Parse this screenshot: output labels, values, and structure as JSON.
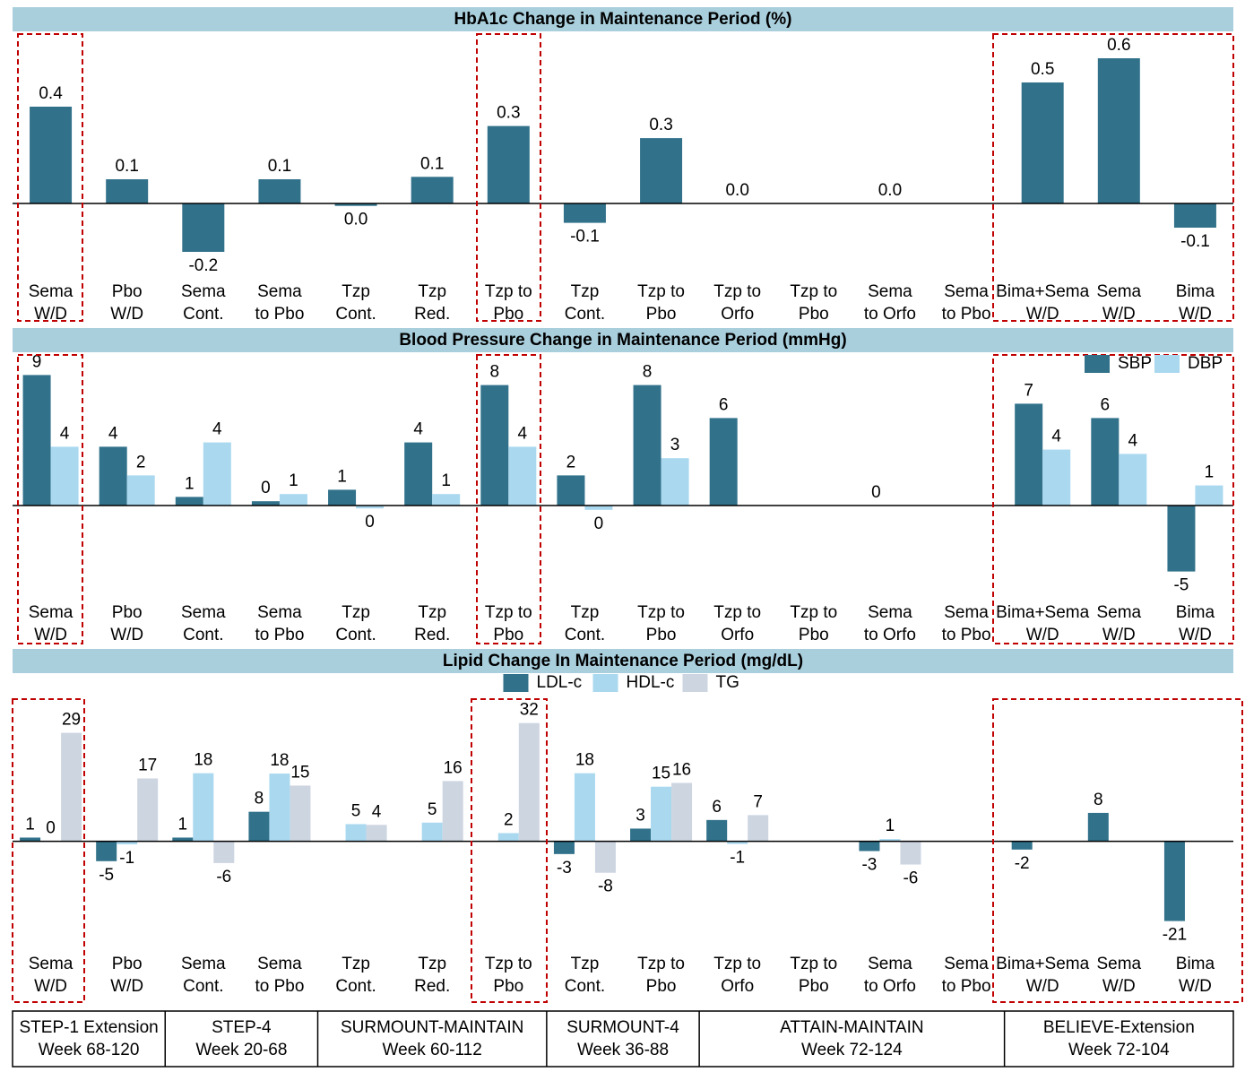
{
  "chart_data": [
    {
      "type": "bar",
      "title": "HbA1c Change in Maintenance Period (%)",
      "categories": [
        [
          "Sema",
          "W/D"
        ],
        [
          "Pbo",
          "W/D"
        ],
        [
          "Sema",
          "Cont."
        ],
        [
          "Sema",
          "to Pbo"
        ],
        [
          "Tzp",
          "Cont."
        ],
        [
          "Tzp",
          "Red."
        ],
        [
          "Tzp to",
          "Pbo"
        ],
        [
          "Tzp",
          "Cont."
        ],
        [
          "Tzp to",
          "Pbo"
        ],
        [
          "Tzp to",
          "Orfo"
        ],
        [
          "Tzp to",
          "Pbo"
        ],
        [
          "Sema",
          "to Orfo"
        ],
        [
          "Sema",
          "to Pbo"
        ],
        [
          "Bima+Sema",
          "W/D"
        ],
        [
          "Sema",
          "W/D"
        ],
        [
          "Bima",
          "W/D"
        ]
      ],
      "values": [
        0.4,
        0.1,
        -0.2,
        0.1,
        -0.01,
        0.11,
        0.32,
        -0.08,
        0.27,
        0,
        null,
        0,
        null,
        0.5,
        0.6,
        -0.1
      ],
      "value_labels": [
        "0.4",
        "0.1",
        "-0.2",
        "0.1",
        "0.0",
        "0.1",
        "0.3",
        "-0.1",
        "0.3",
        "0.0",
        null,
        "0.0",
        null,
        "0.5",
        "0.6",
        "-0.1"
      ],
      "color": "#31718a",
      "ylim": [
        -0.5,
        0.7
      ]
    },
    {
      "type": "bar",
      "title": "Blood Pressure Change in Maintenance Period (mmHg)",
      "categories": [
        [
          "Sema",
          "W/D"
        ],
        [
          "Pbo",
          "W/D"
        ],
        [
          "Sema",
          "Cont."
        ],
        [
          "Sema",
          "to Pbo"
        ],
        [
          "Tzp",
          "Cont."
        ],
        [
          "Tzp",
          "Red."
        ],
        [
          "Tzp to",
          "Pbo"
        ],
        [
          "Tzp",
          "Cont."
        ],
        [
          "Tzp to",
          "Pbo"
        ],
        [
          "Tzp to",
          "Orfo"
        ],
        [
          "Tzp to",
          "Pbo"
        ],
        [
          "Sema",
          "to Orfo"
        ],
        [
          "Sema",
          "to Pbo"
        ],
        [
          "Bima+Sema",
          "W/D"
        ],
        [
          "Sema",
          "W/D"
        ],
        [
          "Bima",
          "W/D"
        ]
      ],
      "series": [
        {
          "name": "SBP",
          "color": "#31718a",
          "values": [
            9.1,
            4.1,
            0.6,
            0.3,
            1.1,
            4.4,
            8.4,
            2.1,
            8.4,
            6.1,
            null,
            0,
            null,
            7.1,
            6.1,
            -4.6
          ],
          "value_labels": [
            "9",
            "4",
            "1",
            "0",
            "1",
            "4",
            "8",
            "2",
            "8",
            "6",
            null,
            "0",
            null,
            "7",
            "6",
            "-5"
          ]
        },
        {
          "name": "DBP",
          "color": "#a9d8ef",
          "values": [
            4.1,
            2.1,
            4.4,
            0.8,
            -0.2,
            0.8,
            4.1,
            -0.3,
            3.3,
            null,
            null,
            null,
            null,
            3.9,
            3.6,
            1.4
          ],
          "value_labels": [
            "4",
            "2",
            "4",
            "1",
            "0",
            "1",
            "4",
            "0",
            "3",
            null,
            null,
            null,
            null,
            "4",
            "4",
            "1"
          ]
        }
      ],
      "ylim": [
        -9.5,
        10.5
      ],
      "legend": "upper right"
    },
    {
      "type": "bar",
      "title": "Lipid Change In Maintenance Period (mg/dL)",
      "categories": [
        [
          "Sema",
          "W/D"
        ],
        [
          "Pbo",
          "W/D"
        ],
        [
          "Sema",
          "Cont."
        ],
        [
          "Sema",
          "to Pbo"
        ],
        [
          "Tzp",
          "Cont."
        ],
        [
          "Tzp",
          "Red."
        ],
        [
          "Tzp to",
          "Pbo"
        ],
        [
          "Tzp",
          "Cont."
        ],
        [
          "Tzp to",
          "Pbo"
        ],
        [
          "Tzp to",
          "Orfo"
        ],
        [
          "Tzp to",
          "Pbo"
        ],
        [
          "Sema",
          "to Orfo"
        ],
        [
          "Sema",
          "to Pbo"
        ],
        [
          "Bima+Sema",
          "W/D"
        ],
        [
          "Sema",
          "W/D"
        ],
        [
          "Bima",
          "W/D"
        ]
      ],
      "series": [
        {
          "name": "LDL-c",
          "color": "#31718a",
          "values": [
            1,
            -5.3,
            1,
            7.9,
            null,
            null,
            null,
            -3.4,
            3.4,
            5.7,
            null,
            -2.6,
            null,
            -2.2,
            7.6,
            -21.3
          ],
          "value_labels": [
            "1",
            "-5",
            "1",
            "8",
            null,
            null,
            null,
            "-3",
            "3",
            "6",
            null,
            "-3",
            null,
            "-2",
            "8",
            "-21"
          ]
        },
        {
          "name": "HDL-c",
          "color": "#a9d8ef",
          "values": [
            0,
            -0.8,
            18.2,
            18.1,
            4.6,
            5,
            2.2,
            18.2,
            14.6,
            -0.7,
            null,
            0.6,
            null,
            null,
            null,
            null
          ],
          "value_labels": [
            "0",
            "-1",
            "18",
            "18",
            "5",
            "5",
            "2",
            "18",
            "15",
            "-1",
            null,
            "1",
            null,
            null,
            null,
            null
          ]
        },
        {
          "name": "TG",
          "color": "#cdd5e1",
          "values": [
            29,
            16.8,
            -5.8,
            14.9,
            4.4,
            16.1,
            31.6,
            -8.4,
            15.6,
            7,
            null,
            -6.2,
            null,
            null,
            null,
            null
          ],
          "value_labels": [
            "29",
            "17",
            "-6",
            "15",
            "4",
            "16",
            "32",
            "-8",
            "16",
            "7",
            null,
            "-6",
            null,
            null,
            null,
            null
          ]
        }
      ],
      "ylim": [
        -42,
        38
      ],
      "legend": "upper center"
    }
  ],
  "table": {
    "trials": [
      {
        "name": "STEP-1 Extension",
        "period": "Week 68-120"
      },
      {
        "name": "STEP-4",
        "period": "Week 20-68"
      },
      {
        "name": "SURMOUNT-MAINTAIN",
        "period": "Week 60-112"
      },
      {
        "name": "SURMOUNT-4",
        "period": "Week 36-88"
      },
      {
        "name": "ATTAIN-MAINTAIN",
        "period": "Week 72-124"
      },
      {
        "name": "BELIEVE-Extension",
        "period": "Week 72-104"
      }
    ]
  }
}
